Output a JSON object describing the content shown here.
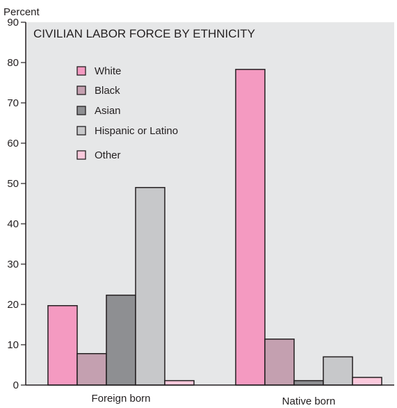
{
  "chart_data": {
    "type": "bar",
    "title": "CIVILIAN LABOR FORCE BY ETHNICITY",
    "ylabel": "Percent",
    "xlabel": "",
    "ylim": [
      0,
      90
    ],
    "yticks": [
      0,
      10,
      20,
      30,
      40,
      50,
      60,
      70,
      80,
      90
    ],
    "grid": false,
    "legend_position": "top-left",
    "categories": [
      "Foreign born",
      "Native born"
    ],
    "series": [
      {
        "name": "White",
        "color": "#f49ac1",
        "values": [
          19.7,
          78.3
        ]
      },
      {
        "name": "Black",
        "color": "#c4a0b0",
        "values": [
          7.8,
          11.4
        ]
      },
      {
        "name": "Asian",
        "color": "#8e8f92",
        "values": [
          22.3,
          1.1
        ]
      },
      {
        "name": "Hispanic or Latino",
        "color": "#c7c8ca",
        "values": [
          49.0,
          7.0
        ]
      },
      {
        "name": "Other",
        "color": "#fbc9dc",
        "values": [
          1.1,
          1.9
        ]
      }
    ]
  }
}
